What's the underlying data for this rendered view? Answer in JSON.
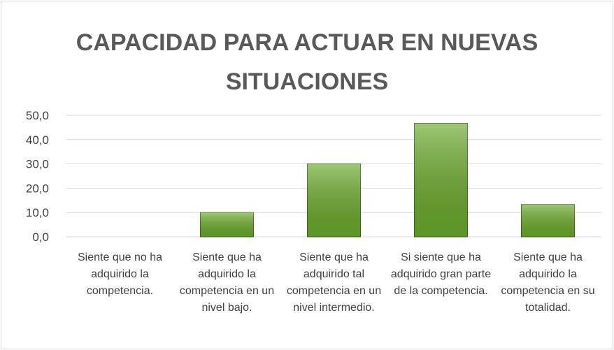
{
  "chart_data": {
    "type": "bar",
    "title": "CAPACIDAD PARA ACTUAR EN NUEVAS SITUACIONES",
    "categories": [
      "Siente que no ha adquirido la competencia.",
      "Siente que ha adquirido la competencia en un nivel bajo.",
      "Siente que ha adquirido tal competencia en un nivel intermedio.",
      "Si siente que ha adquirido gran parte de la competencia.",
      "Siente que ha adquirido la competencia en su totalidad."
    ],
    "values": [
      0,
      10,
      30,
      46.7,
      13.3
    ],
    "color": "#6aaa2a",
    "ylim": [
      0,
      50
    ],
    "yticks": [
      {
        "value": 0,
        "label": "0,0"
      },
      {
        "value": 10,
        "label": "10,0"
      },
      {
        "value": 20,
        "label": "20,0"
      },
      {
        "value": 30,
        "label": "30,0"
      },
      {
        "value": 40,
        "label": "40,0"
      },
      {
        "value": 50,
        "label": "50,0"
      }
    ],
    "grid": true
  }
}
